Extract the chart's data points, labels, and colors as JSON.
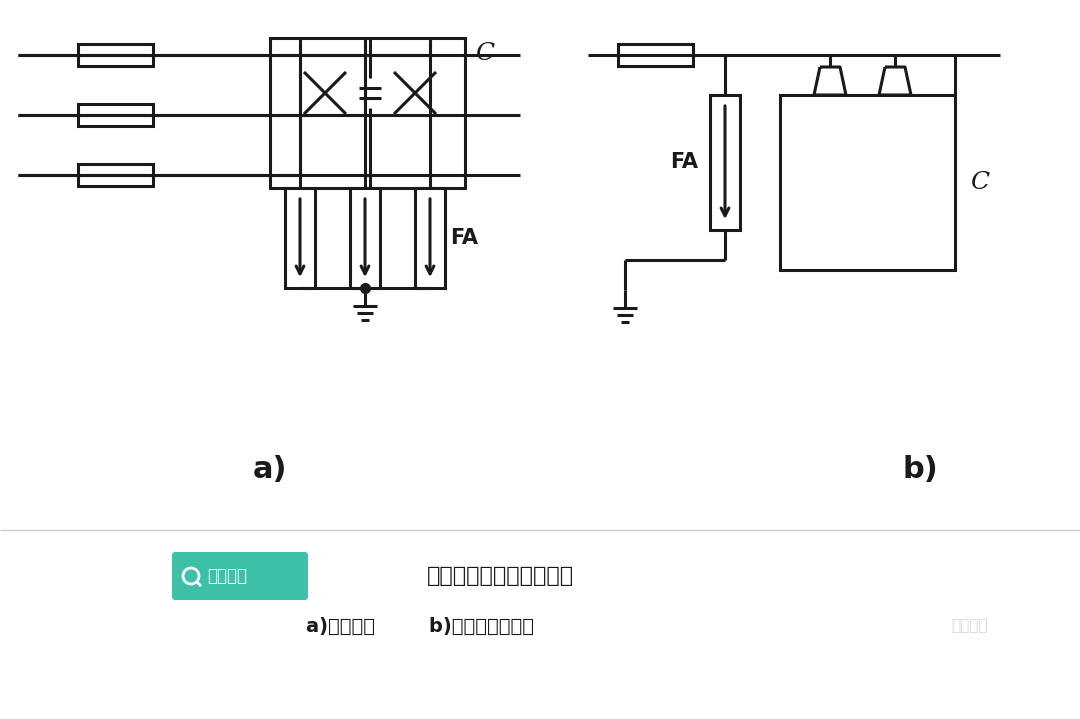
{
  "bg_color": "#ffffff",
  "line_color": "#1a1a1a",
  "line_width": 2.2,
  "title_text": "线路移相电容器保护接线",
  "subtitle_text": "a)接线方法        b)避雷器安装方法",
  "label_a": "a)",
  "label_b": "b)",
  "label_FA_a": "FA",
  "label_FA_b": "FA",
  "label_C_a": "C",
  "label_C_b": "C",
  "brand_text": "电工知库",
  "brand_color": "#3dbfa8",
  "watermark_text": "电工知库"
}
